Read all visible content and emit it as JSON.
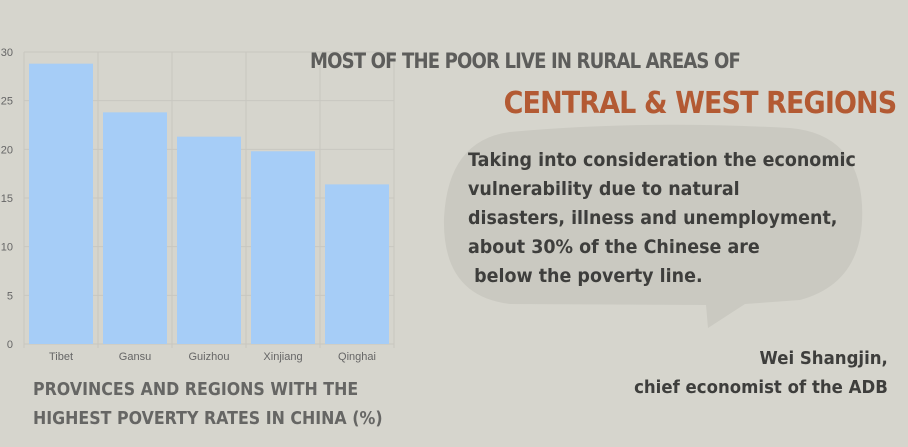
{
  "headline": {
    "line1": "MOST OF THE POOR LIVE IN RURAL AREAS OF",
    "line2": "CENTRAL & WEST REGIONS"
  },
  "quote": {
    "lines": [
      "Taking into consideration the economic",
      "vulnerability due to natural",
      "disasters, illness and unemployment,",
      "about 30% of the Chinese are",
      " below the poverty line."
    ],
    "author": "Wei Shangjin,",
    "author_title": "chief economist of the ADB"
  },
  "caption": {
    "line1": "PROVINCES AND REGIONS WITH THE",
    "line2": "HIGHEST POVERTY RATES IN CHINA (%)"
  },
  "colors": {
    "background": "#d6d5cd",
    "bar": "#a6cdf7",
    "grid": "#c8c7c0",
    "accent": "#b35a33"
  },
  "chart_data": {
    "type": "bar",
    "categories": [
      "Tibet",
      "Gansu",
      "Guizhou",
      "Xinjiang",
      "Qinghai"
    ],
    "values": [
      28.8,
      23.8,
      21.3,
      19.8,
      16.4
    ],
    "ylim": [
      0,
      30
    ],
    "yticks": [
      0,
      5,
      10,
      15,
      20,
      25,
      30
    ],
    "grid": true,
    "title": "",
    "xlabel": "",
    "ylabel": ""
  }
}
